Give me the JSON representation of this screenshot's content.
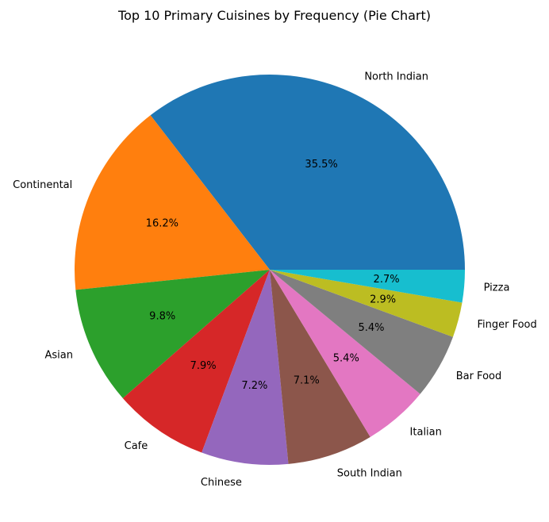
{
  "chart_data": {
    "type": "pie",
    "title": "Top 10 Primary Cuisines by Frequency (Pie Chart)",
    "start_angle_deg": 0,
    "direction": "counterclockwise",
    "slices": [
      {
        "label": "North Indian",
        "value": 35.5,
        "pct_label": "35.5%",
        "color": "#1f77b4"
      },
      {
        "label": "Continental",
        "value": 16.2,
        "pct_label": "16.2%",
        "color": "#ff7f0e"
      },
      {
        "label": "Asian",
        "value": 9.8,
        "pct_label": "9.8%",
        "color": "#2ca02c"
      },
      {
        "label": "Cafe",
        "value": 7.9,
        "pct_label": "7.9%",
        "color": "#d62728"
      },
      {
        "label": "Chinese",
        "value": 7.2,
        "pct_label": "7.2%",
        "color": "#9467bd"
      },
      {
        "label": "South Indian",
        "value": 7.1,
        "pct_label": "7.1%",
        "color": "#8c564b"
      },
      {
        "label": "Italian",
        "value": 5.4,
        "pct_label": "5.4%",
        "color": "#e377c2"
      },
      {
        "label": "Bar Food",
        "value": 5.4,
        "pct_label": "5.4%",
        "color": "#7f7f7f"
      },
      {
        "label": "Finger Food",
        "value": 2.9,
        "pct_label": "2.9%",
        "color": "#bcbd22"
      },
      {
        "label": "Pizza",
        "value": 2.7,
        "pct_label": "2.7%",
        "color": "#17becf"
      }
    ]
  }
}
